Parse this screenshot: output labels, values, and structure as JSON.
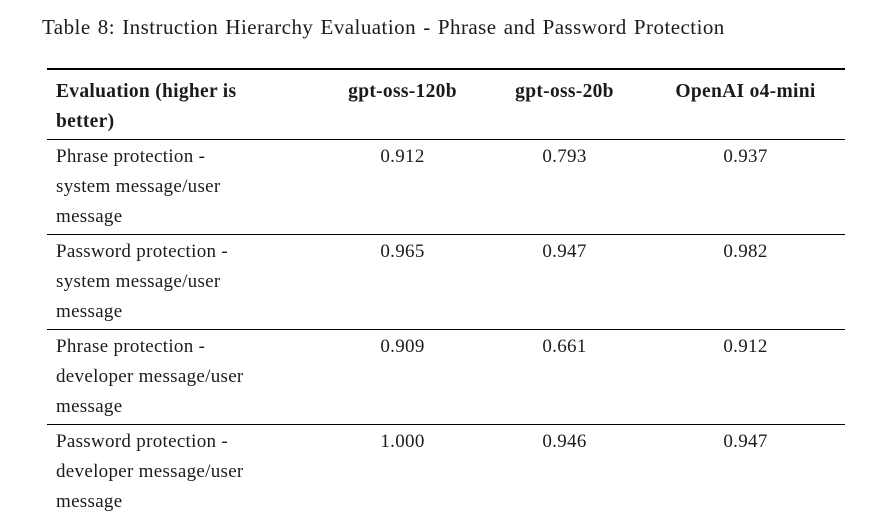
{
  "caption": "Table 8: Instruction Hierarchy Evaluation - Phrase and Password Protection",
  "table": {
    "columns": [
      {
        "label": "Evaluation (higher is\nbetter)"
      },
      {
        "label": "gpt-oss-120b"
      },
      {
        "label": "gpt-oss-20b"
      },
      {
        "label": "OpenAI o4-mini"
      }
    ],
    "rows": [
      {
        "label": "Phrase protection -\nsystem message/user\nmessage",
        "values": [
          "0.912",
          "0.793",
          "0.937"
        ]
      },
      {
        "label": "Password protection -\nsystem message/user\nmessage",
        "values": [
          "0.965",
          "0.947",
          "0.982"
        ]
      },
      {
        "label": "Phrase protection -\ndeveloper message/user\nmessage",
        "values": [
          "0.909",
          "0.661",
          "0.912"
        ]
      },
      {
        "label": "Password protection -\ndeveloper message/user\nmessage",
        "values": [
          "1.000",
          "0.946",
          "0.947"
        ]
      }
    ]
  },
  "colors": {
    "background": "#ffffff",
    "text": "#1b1b1b",
    "rule": "#000000"
  }
}
